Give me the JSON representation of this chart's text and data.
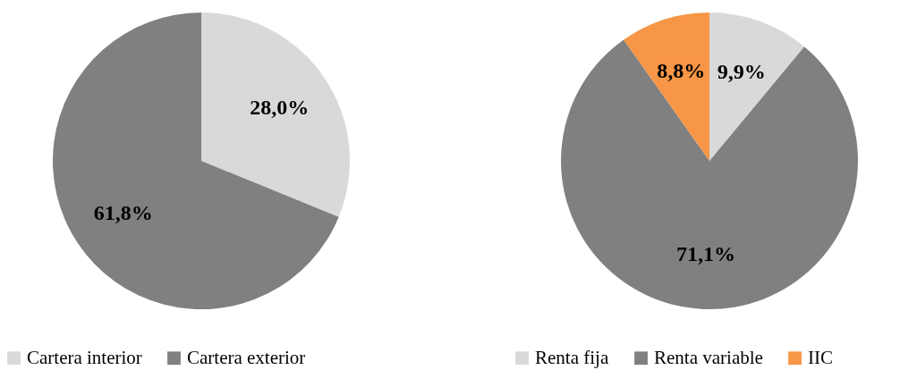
{
  "chart_data": [
    {
      "type": "pie",
      "categories": [
        "Cartera interior",
        "Cartera exterior"
      ],
      "values": [
        28.0,
        61.8
      ],
      "colors": [
        "#d9d9d9",
        "#808080"
      ],
      "value_labels": [
        "28,0%",
        "61,8%"
      ],
      "legend": "bottom"
    },
    {
      "type": "pie",
      "categories": [
        "Renta fija",
        "Renta variable",
        "IIC"
      ],
      "values": [
        9.9,
        71.1,
        8.8
      ],
      "colors": [
        "#d9d9d9",
        "#808080",
        "#f79646"
      ],
      "value_labels": [
        "9,9%",
        "71,1%",
        "8,8%"
      ],
      "legend": "bottom"
    }
  ]
}
